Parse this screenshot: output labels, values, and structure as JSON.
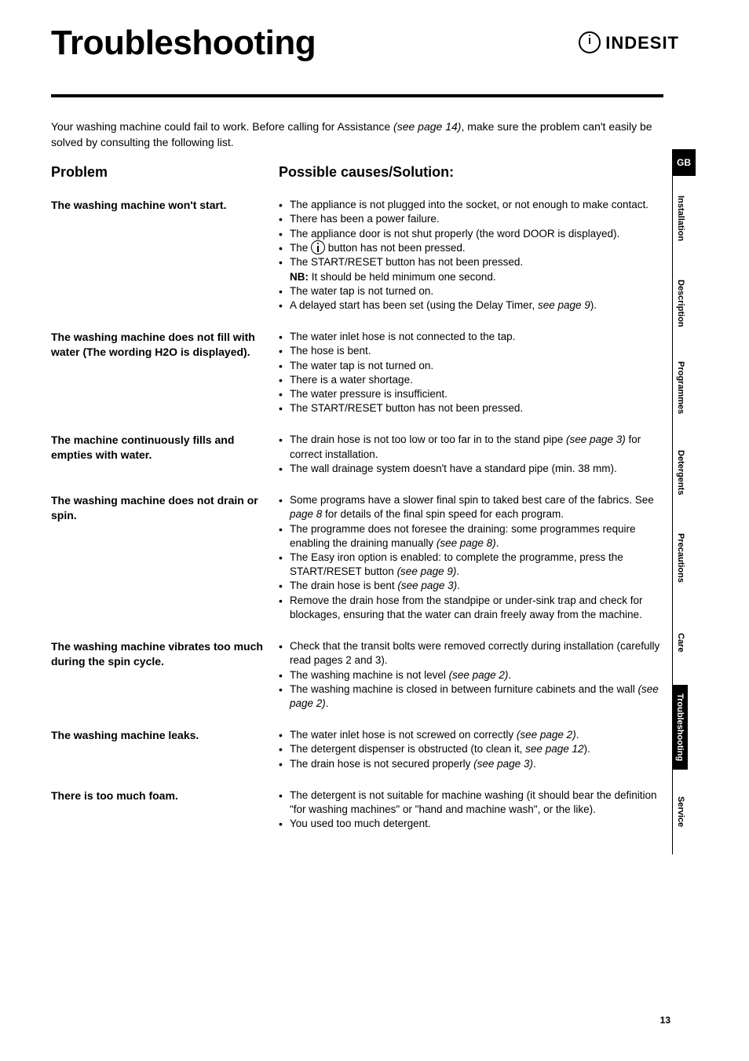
{
  "page": {
    "title": "Troubleshooting",
    "brand": "INDESIT",
    "page_number": "13",
    "lang_tab": "GB"
  },
  "intro": {
    "pre": "Your washing machine could fail to work. Before calling for Assistance ",
    "ital": "(see page 14)",
    "post": ", make sure the problem can't easily be solved by consulting the following list."
  },
  "headings": {
    "problem": "Problem",
    "causes": "Possible causes/Solution:"
  },
  "tabs": [
    {
      "label": "Installation",
      "active": false
    },
    {
      "label": "Description",
      "active": false
    },
    {
      "label": "Programmes",
      "active": false
    },
    {
      "label": "Detergents",
      "active": false
    },
    {
      "label": "Precautions",
      "active": false
    },
    {
      "label": "Care",
      "active": false
    },
    {
      "label": "Troubleshooting",
      "active": true
    },
    {
      "label": "Service",
      "active": false
    }
  ],
  "rows": [
    {
      "problem": "The washing machine won't start.",
      "causes": [
        {
          "html": "The appliance is not plugged into the socket, or not enough to make contact."
        },
        {
          "html": "There has been a power failure."
        },
        {
          "html": "The appliance door is not shut properly (the word DOOR is displayed)."
        },
        {
          "html": "The <span class='inline-i' data-name='power-icon' data-interactable='false'></span> button has not been pressed."
        },
        {
          "html": "The START/RESET button has not been pressed.<br><span class='bold'>NB:</span> It should be held minimum one second."
        },
        {
          "html": "The water tap is not turned on."
        },
        {
          "html": "A delayed start has been set (using the Delay Timer, <span class='ital'>see page 9</span>)."
        }
      ]
    },
    {
      "problem": "The washing machine does not fill with water (The wording H2O is displayed).",
      "causes": [
        {
          "html": "The water inlet hose is not connected to the tap."
        },
        {
          "html": "The hose is bent."
        },
        {
          "html": "The water tap is not turned on."
        },
        {
          "html": "There is a water shortage."
        },
        {
          "html": "The water pressure is insufficient."
        },
        {
          "html": "The START/RESET button has not been pressed."
        }
      ]
    },
    {
      "problem": "The machine continuously fills and empties with water.",
      "causes": [
        {
          "html": "The drain hose is not too low or too far in to the stand pipe <span class='ital'>(see page 3)</span> for correct installation."
        },
        {
          "html": "The wall drainage system doesn't have a standard pipe (min. 38 mm)."
        }
      ]
    },
    {
      "problem": "The washing machine does not drain or spin.",
      "causes": [
        {
          "html": "Some programs have a slower final spin to taked best care of the fabrics. See <span class='ital'>page 8</span> for details of the final spin speed for each program."
        },
        {
          "html": "The programme does not foresee the draining: some programmes require enabling the draining manually <span class='ital'>(see page 8)</span>."
        },
        {
          "html": "The Easy iron option is enabled: to complete the programme, press the START/RESET button <span class='ital'>(see page 9)</span>."
        },
        {
          "html": "The drain hose is bent <span class='ital'>(see page 3)</span>."
        },
        {
          "html": "Remove the drain hose from the standpipe or under-sink trap and check for blockages, ensuring that the water can drain freely away from the machine."
        }
      ]
    },
    {
      "problem": "The washing machine vibrates too much during the spin cycle.",
      "causes": [
        {
          "html": "Check that the transit bolts were removed correctly during installation (carefully read pages 2 and 3)."
        },
        {
          "html": "The washing machine is not level <span class='ital'>(see page 2)</span>."
        },
        {
          "html": "The washing machine is closed in between furniture cabinets and the wall <span class='ital'>(see page 2)</span>."
        }
      ]
    },
    {
      "problem": "The washing machine leaks.",
      "causes": [
        {
          "html": "The water inlet hose is not screwed on correctly <span class='ital'>(see page 2)</span>."
        },
        {
          "html": "The detergent dispenser is obstructed (to clean it, <span class='ital'>see page 12</span>)."
        },
        {
          "html": "The drain hose is not secured properly <span class='ital'>(see page 3)</span>."
        }
      ]
    },
    {
      "problem": "There is too much foam.",
      "causes": [
        {
          "html": "The detergent is not suitable for machine washing (it should bear the definition \"for washing machines\" or \"hand and machine wash\", or the like)."
        },
        {
          "html": "You used too much detergent."
        }
      ]
    }
  ]
}
